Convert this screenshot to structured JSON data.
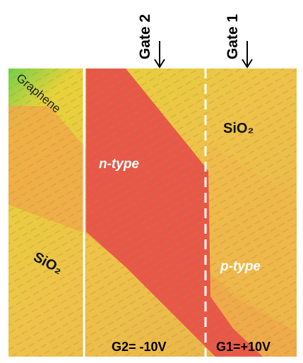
{
  "top_labels": [
    "Gate 2",
    "Gate 1"
  ],
  "image_labels": {
    "graphene": "Graphene",
    "sio2_top": "SiO₂",
    "sio2_bottom": "SiO₂",
    "n_type": "n-type",
    "p_type": "p-type"
  },
  "bottom_labels": [
    "G2= -10V",
    "G1=+10V"
  ]
}
